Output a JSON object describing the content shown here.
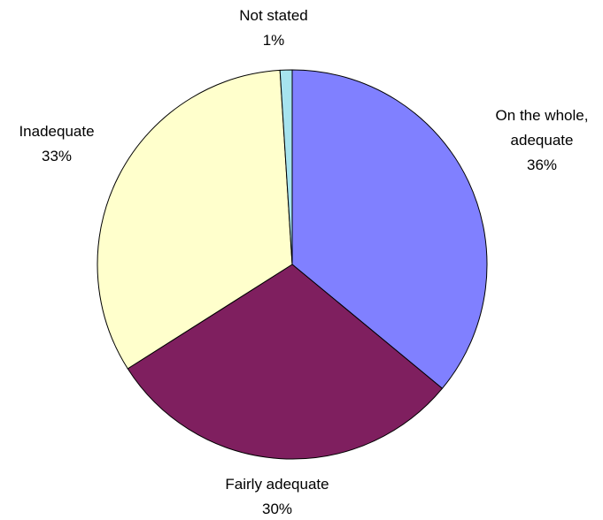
{
  "chart_data": {
    "type": "pie",
    "title": "",
    "slices": [
      {
        "label_lines": [
          "On the whole,",
          "adequate"
        ],
        "value_label": "36%",
        "value": 36,
        "color": "#8080ff"
      },
      {
        "label_lines": [
          "Fairly adequate"
        ],
        "value_label": "30%",
        "value": 30,
        "color": "#7f1f5f"
      },
      {
        "label_lines": [
          "Inadequate"
        ],
        "value_label": "33%",
        "value": 33,
        "color": "#ffffcc"
      },
      {
        "label_lines": [
          "Not stated"
        ],
        "value_label": "1%",
        "value": 1,
        "color": "#a6e3ee"
      }
    ],
    "start_angle_deg": 0,
    "direction": "clockwise"
  }
}
